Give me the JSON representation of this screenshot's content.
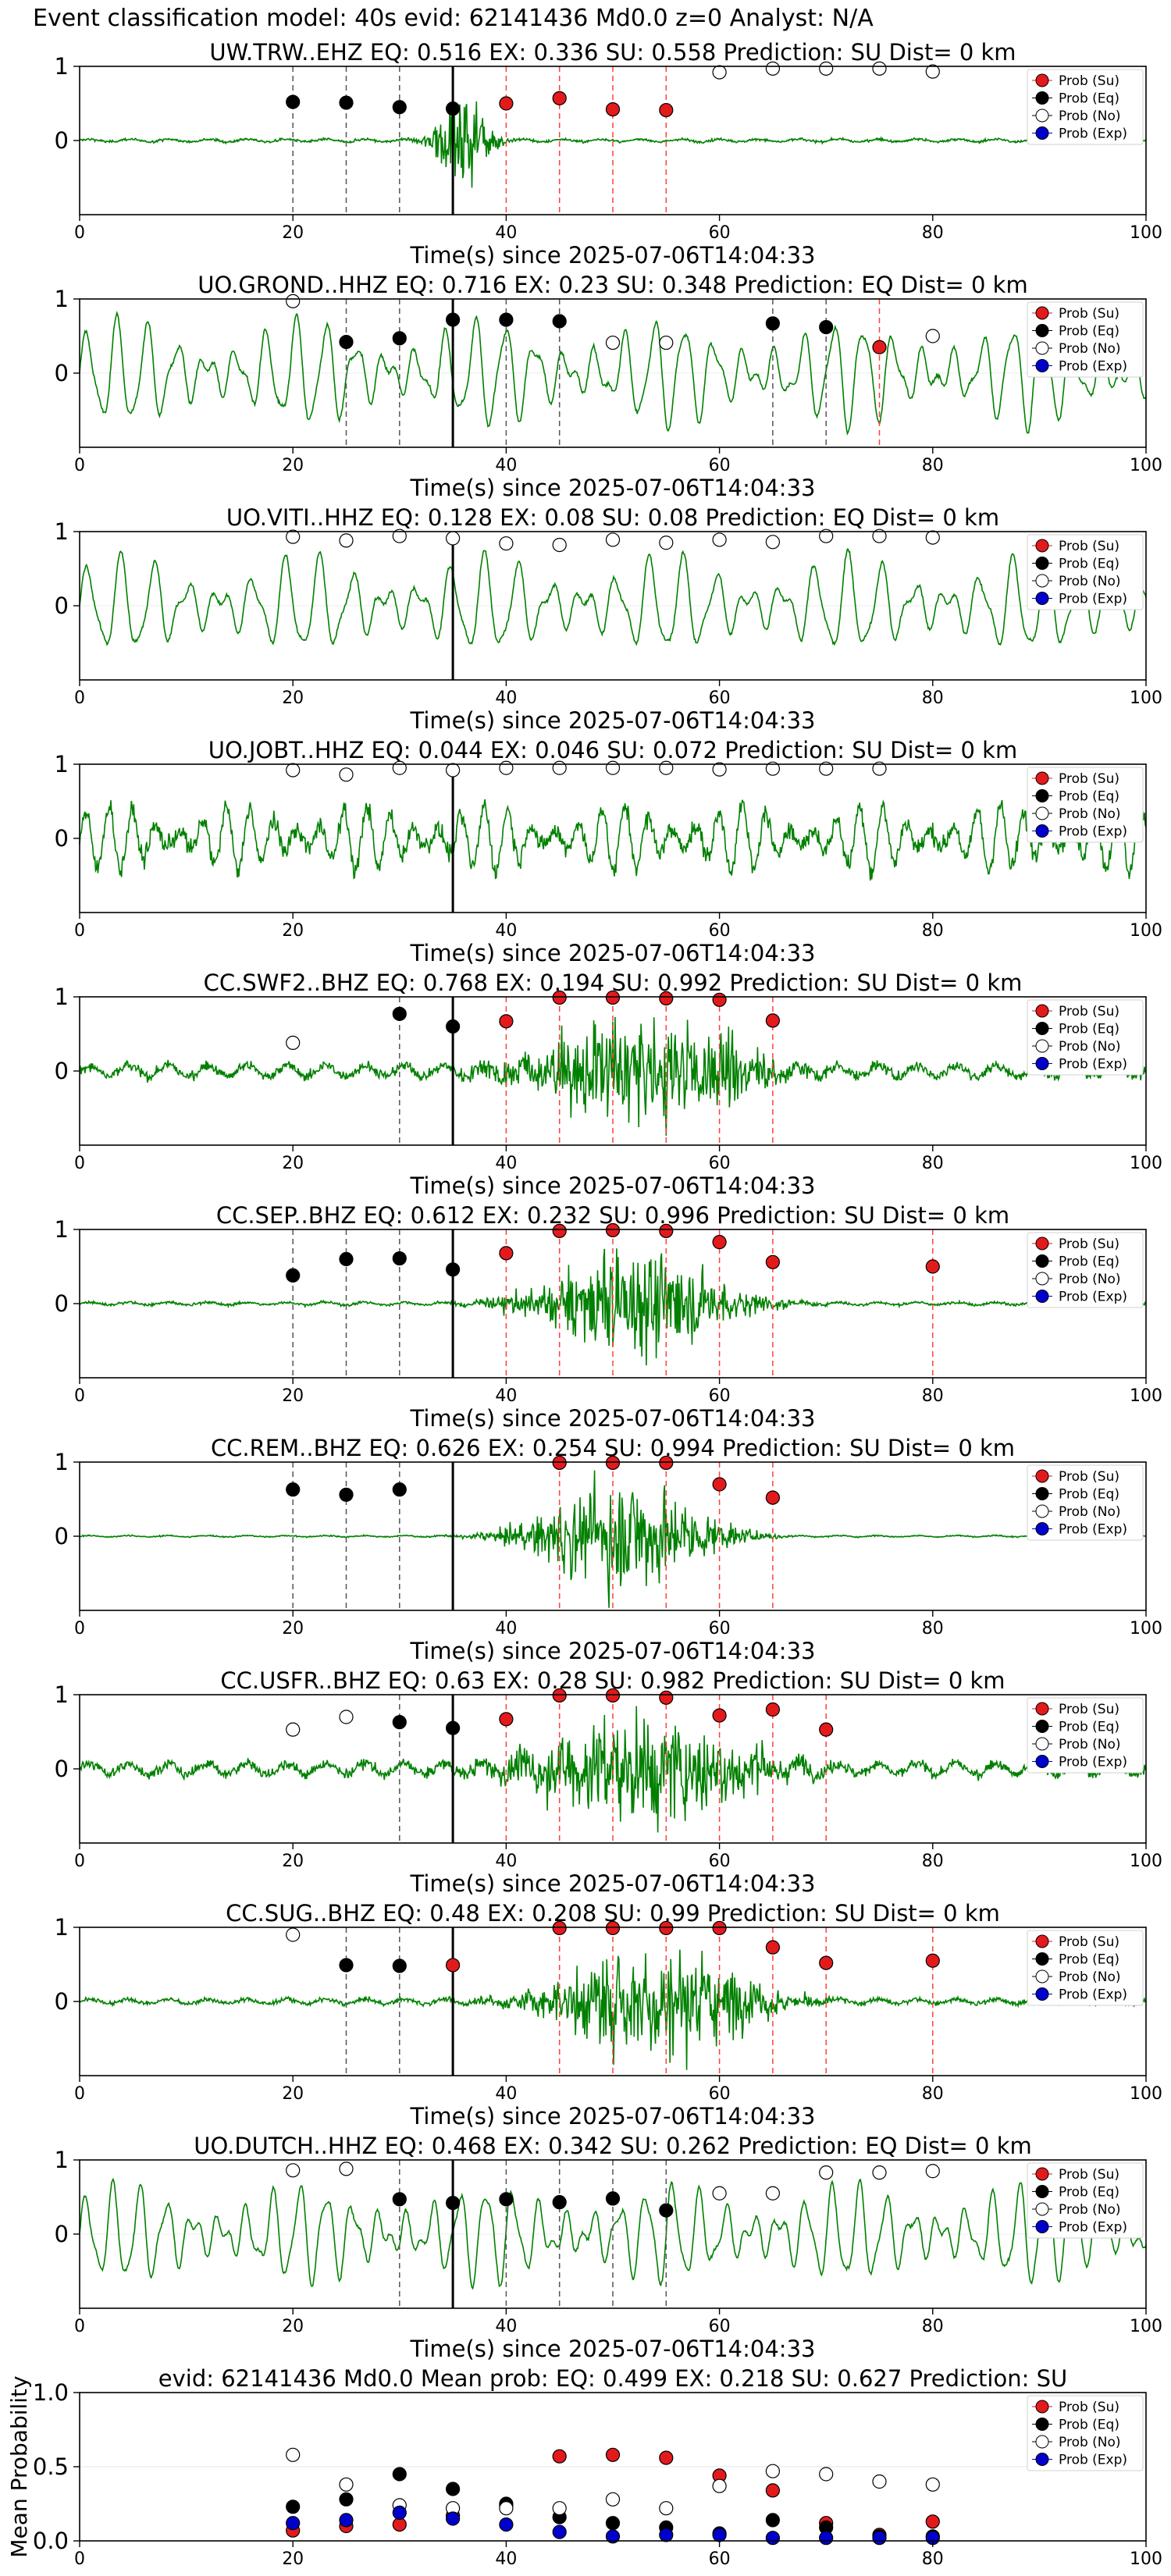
{
  "suptitle": "Event classification model: 40s evid: 62141436 Md0.0 z=0 Analyst: N/A",
  "legend_labels": [
    "Prob (Su)",
    "Prob (Eq)",
    "Prob (No)",
    "Prob (Exp)"
  ],
  "colors": {
    "su": "#e31a1c",
    "eq": "#000000",
    "no": "#ffffff",
    "exp": "#0000cc",
    "trace": "#008000",
    "su_line": "#ff4040",
    "eq_line": "#555555",
    "arrival": "#000000"
  },
  "chart_data": [
    {
      "type": "line",
      "title": "UW.TRW..EHZ   EQ: 0.516  EX: 0.336  SU: 0.558   Prediction: SU    Dist= 0 km",
      "xlabel": "Time(s) since 2025-07-06T14:04:33",
      "xlim": [
        0,
        100
      ],
      "xticks": [
        0,
        20,
        40,
        60,
        80,
        100
      ],
      "yticks": [
        0,
        1
      ],
      "ylim": [
        -1,
        1
      ],
      "trace_style": "burst",
      "burst_center": 36,
      "burst_width": 2.5,
      "noise_amp": 0.03,
      "burst_amp": 1.0,
      "arrival": 35,
      "points": [
        {
          "x": 20,
          "y": 0.52,
          "c": "eq"
        },
        {
          "x": 25,
          "y": 0.51,
          "c": "eq"
        },
        {
          "x": 30,
          "y": 0.45,
          "c": "eq"
        },
        {
          "x": 35,
          "y": 0.43,
          "c": "eq"
        },
        {
          "x": 40,
          "y": 0.5,
          "c": "su"
        },
        {
          "x": 45,
          "y": 0.57,
          "c": "su"
        },
        {
          "x": 50,
          "y": 0.42,
          "c": "su"
        },
        {
          "x": 55,
          "y": 0.41,
          "c": "su"
        },
        {
          "x": 60,
          "y": 0.92,
          "c": "no"
        },
        {
          "x": 65,
          "y": 0.97,
          "c": "no"
        },
        {
          "x": 70,
          "y": 0.97,
          "c": "no"
        },
        {
          "x": 75,
          "y": 0.97,
          "c": "no"
        },
        {
          "x": 80,
          "y": 0.93,
          "c": "no"
        }
      ]
    },
    {
      "type": "line",
      "title": "UO.GROND..HHZ   EQ: 0.716  EX: 0.23  SU: 0.348   Prediction: EQ    Dist= 0 km",
      "xlabel": "Time(s) since 2025-07-06T14:04:33",
      "xlim": [
        0,
        100
      ],
      "xticks": [
        0,
        20,
        40,
        60,
        80,
        100
      ],
      "yticks": [
        0,
        1
      ],
      "ylim": [
        -1,
        1
      ],
      "trace_style": "wave",
      "wave_amp": 0.6,
      "wave_period": 2.8,
      "arrival": 35,
      "points": [
        {
          "x": 20,
          "y": 0.97,
          "c": "no"
        },
        {
          "x": 25,
          "y": 0.42,
          "c": "eq"
        },
        {
          "x": 30,
          "y": 0.47,
          "c": "eq"
        },
        {
          "x": 35,
          "y": 0.72,
          "c": "eq"
        },
        {
          "x": 40,
          "y": 0.72,
          "c": "eq"
        },
        {
          "x": 45,
          "y": 0.7,
          "c": "eq"
        },
        {
          "x": 50,
          "y": 0.41,
          "c": "no"
        },
        {
          "x": 55,
          "y": 0.41,
          "c": "no"
        },
        {
          "x": 65,
          "y": 0.67,
          "c": "eq"
        },
        {
          "x": 70,
          "y": 0.62,
          "c": "eq"
        },
        {
          "x": 75,
          "y": 0.35,
          "c": "su"
        },
        {
          "x": 80,
          "y": 0.5,
          "c": "no"
        }
      ]
    },
    {
      "type": "line",
      "title": "UO.VITI..HHZ   EQ: 0.128  EX: 0.08  SU: 0.08   Prediction: EQ    Dist= 0 km",
      "xlabel": "Time(s) since 2025-07-06T14:04:33",
      "xlim": [
        0,
        100
      ],
      "xticks": [
        0,
        20,
        40,
        60,
        80,
        100
      ],
      "yticks": [
        0,
        1
      ],
      "ylim": [
        -1,
        1
      ],
      "trace_style": "wave",
      "wave_amp": 0.55,
      "wave_period": 3.1,
      "arrival": 35,
      "points": [
        {
          "x": 20,
          "y": 0.93,
          "c": "no"
        },
        {
          "x": 25,
          "y": 0.88,
          "c": "no"
        },
        {
          "x": 30,
          "y": 0.94,
          "c": "no"
        },
        {
          "x": 35,
          "y": 0.91,
          "c": "no"
        },
        {
          "x": 40,
          "y": 0.84,
          "c": "no"
        },
        {
          "x": 45,
          "y": 0.82,
          "c": "no"
        },
        {
          "x": 50,
          "y": 0.89,
          "c": "no"
        },
        {
          "x": 55,
          "y": 0.85,
          "c": "no"
        },
        {
          "x": 60,
          "y": 0.89,
          "c": "no"
        },
        {
          "x": 65,
          "y": 0.86,
          "c": "no"
        },
        {
          "x": 70,
          "y": 0.94,
          "c": "no"
        },
        {
          "x": 75,
          "y": 0.94,
          "c": "no"
        },
        {
          "x": 80,
          "y": 0.92,
          "c": "no"
        }
      ]
    },
    {
      "type": "line",
      "title": "UO.JOBT..HHZ   EQ: 0.044  EX: 0.046  SU: 0.072   Prediction: SU    Dist= 0 km",
      "xlabel": "Time(s) since 2025-07-06T14:04:33",
      "xlim": [
        0,
        100
      ],
      "xticks": [
        0,
        20,
        40,
        60,
        80,
        100
      ],
      "yticks": [
        0,
        1
      ],
      "ylim": [
        -1,
        1
      ],
      "trace_style": "noisy",
      "wave_amp": 0.45,
      "wave_period": 2.2,
      "arrival": 35,
      "points": [
        {
          "x": 20,
          "y": 0.92,
          "c": "no"
        },
        {
          "x": 25,
          "y": 0.86,
          "c": "no"
        },
        {
          "x": 30,
          "y": 0.95,
          "c": "no"
        },
        {
          "x": 35,
          "y": 0.92,
          "c": "no"
        },
        {
          "x": 40,
          "y": 0.95,
          "c": "no"
        },
        {
          "x": 45,
          "y": 0.95,
          "c": "no"
        },
        {
          "x": 50,
          "y": 0.95,
          "c": "no"
        },
        {
          "x": 55,
          "y": 0.95,
          "c": "no"
        },
        {
          "x": 60,
          "y": 0.93,
          "c": "no"
        },
        {
          "x": 65,
          "y": 0.94,
          "c": "no"
        },
        {
          "x": 70,
          "y": 0.94,
          "c": "no"
        },
        {
          "x": 75,
          "y": 0.94,
          "c": "no"
        }
      ]
    },
    {
      "type": "line",
      "title": "CC.SWF2..BHZ   EQ: 0.768  EX: 0.194  SU: 0.992   Prediction: SU    Dist= 0 km",
      "xlabel": "Time(s) since 2025-07-06T14:04:33",
      "xlim": [
        0,
        100
      ],
      "xticks": [
        0,
        20,
        40,
        60,
        80,
        100
      ],
      "yticks": [
        0,
        1
      ],
      "ylim": [
        -1,
        1
      ],
      "trace_style": "long_burst",
      "burst_center": 53,
      "burst_width": 11,
      "noise_amp": 0.12,
      "burst_amp": 0.95,
      "arrival": 35,
      "points": [
        {
          "x": 20,
          "y": 0.38,
          "c": "no"
        },
        {
          "x": 30,
          "y": 0.77,
          "c": "eq"
        },
        {
          "x": 35,
          "y": 0.6,
          "c": "eq"
        },
        {
          "x": 40,
          "y": 0.67,
          "c": "su"
        },
        {
          "x": 45,
          "y": 0.99,
          "c": "su"
        },
        {
          "x": 50,
          "y": 0.99,
          "c": "su"
        },
        {
          "x": 55,
          "y": 0.98,
          "c": "su"
        },
        {
          "x": 60,
          "y": 0.96,
          "c": "su"
        },
        {
          "x": 65,
          "y": 0.68,
          "c": "su"
        }
      ]
    },
    {
      "type": "line",
      "title": "CC.SEP..BHZ   EQ: 0.612  EX: 0.232  SU: 0.996   Prediction: SU    Dist= 0 km",
      "xlabel": "Time(s) since 2025-07-06T14:04:33",
      "xlim": [
        0,
        100
      ],
      "xticks": [
        0,
        20,
        40,
        60,
        80,
        100
      ],
      "yticks": [
        0,
        1
      ],
      "ylim": [
        -1,
        1
      ],
      "trace_style": "long_burst",
      "burst_center": 52,
      "burst_width": 9,
      "noise_amp": 0.03,
      "burst_amp": 0.95,
      "arrival": 35,
      "points": [
        {
          "x": 20,
          "y": 0.38,
          "c": "eq"
        },
        {
          "x": 25,
          "y": 0.6,
          "c": "eq"
        },
        {
          "x": 30,
          "y": 0.61,
          "c": "eq"
        },
        {
          "x": 35,
          "y": 0.46,
          "c": "eq"
        },
        {
          "x": 40,
          "y": 0.68,
          "c": "su"
        },
        {
          "x": 45,
          "y": 0.98,
          "c": "su"
        },
        {
          "x": 50,
          "y": 0.99,
          "c": "su"
        },
        {
          "x": 55,
          "y": 0.98,
          "c": "su"
        },
        {
          "x": 60,
          "y": 0.83,
          "c": "su"
        },
        {
          "x": 65,
          "y": 0.56,
          "c": "su"
        },
        {
          "x": 80,
          "y": 0.5,
          "c": "su"
        }
      ]
    },
    {
      "type": "line",
      "title": "CC.REM..BHZ   EQ: 0.626  EX: 0.254  SU: 0.994   Prediction: SU    Dist= 0 km",
      "xlabel": "Time(s) since 2025-07-06T14:04:33",
      "xlim": [
        0,
        100
      ],
      "xticks": [
        0,
        20,
        40,
        60,
        80,
        100
      ],
      "yticks": [
        0,
        1
      ],
      "ylim": [
        -1,
        1
      ],
      "trace_style": "long_burst",
      "burst_center": 51,
      "burst_width": 8,
      "noise_amp": 0.015,
      "burst_amp": 1.0,
      "arrival": 35,
      "points": [
        {
          "x": 20,
          "y": 0.63,
          "c": "eq"
        },
        {
          "x": 25,
          "y": 0.56,
          "c": "eq"
        },
        {
          "x": 30,
          "y": 0.63,
          "c": "eq"
        },
        {
          "x": 45,
          "y": 0.99,
          "c": "su"
        },
        {
          "x": 50,
          "y": 0.99,
          "c": "su"
        },
        {
          "x": 55,
          "y": 0.99,
          "c": "su"
        },
        {
          "x": 60,
          "y": 0.7,
          "c": "su"
        },
        {
          "x": 65,
          "y": 0.52,
          "c": "su"
        }
      ]
    },
    {
      "type": "line",
      "title": "CC.USFR..BHZ   EQ: 0.63  EX: 0.28  SU: 0.982   Prediction: SU    Dist= 0 km",
      "xlabel": "Time(s) since 2025-07-06T14:04:33",
      "xlim": [
        0,
        100
      ],
      "xticks": [
        0,
        20,
        40,
        60,
        80,
        100
      ],
      "yticks": [
        0,
        1
      ],
      "ylim": [
        -1,
        1
      ],
      "trace_style": "long_burst",
      "burst_center": 53,
      "burst_width": 11,
      "noise_amp": 0.12,
      "burst_amp": 0.95,
      "arrival": 35,
      "points": [
        {
          "x": 20,
          "y": 0.53,
          "c": "no"
        },
        {
          "x": 25,
          "y": 0.7,
          "c": "no"
        },
        {
          "x": 30,
          "y": 0.63,
          "c": "eq"
        },
        {
          "x": 35,
          "y": 0.55,
          "c": "eq"
        },
        {
          "x": 40,
          "y": 0.67,
          "c": "su"
        },
        {
          "x": 45,
          "y": 0.99,
          "c": "su"
        },
        {
          "x": 50,
          "y": 0.99,
          "c": "su"
        },
        {
          "x": 55,
          "y": 0.96,
          "c": "su"
        },
        {
          "x": 60,
          "y": 0.72,
          "c": "su"
        },
        {
          "x": 65,
          "y": 0.8,
          "c": "su"
        },
        {
          "x": 70,
          "y": 0.53,
          "c": "su"
        }
      ]
    },
    {
      "type": "line",
      "title": "CC.SUG..BHZ   EQ: 0.48  EX: 0.208  SU: 0.99   Prediction: SU    Dist= 0 km",
      "xlabel": "Time(s) since 2025-07-06T14:04:33",
      "xlim": [
        0,
        100
      ],
      "xticks": [
        0,
        20,
        40,
        60,
        80,
        100
      ],
      "yticks": [
        0,
        1
      ],
      "ylim": [
        -1,
        1
      ],
      "trace_style": "long_burst",
      "burst_center": 54,
      "burst_width": 10,
      "noise_amp": 0.05,
      "burst_amp": 1.0,
      "arrival": 35,
      "points": [
        {
          "x": 20,
          "y": 0.9,
          "c": "no"
        },
        {
          "x": 25,
          "y": 0.49,
          "c": "eq"
        },
        {
          "x": 30,
          "y": 0.48,
          "c": "eq"
        },
        {
          "x": 35,
          "y": 0.49,
          "c": "su"
        },
        {
          "x": 45,
          "y": 0.99,
          "c": "su"
        },
        {
          "x": 50,
          "y": 0.99,
          "c": "su"
        },
        {
          "x": 55,
          "y": 0.99,
          "c": "su"
        },
        {
          "x": 60,
          "y": 0.99,
          "c": "su"
        },
        {
          "x": 65,
          "y": 0.73,
          "c": "su"
        },
        {
          "x": 70,
          "y": 0.52,
          "c": "su"
        },
        {
          "x": 80,
          "y": 0.55,
          "c": "su"
        }
      ]
    },
    {
      "type": "line",
      "title": "UO.DUTCH..HHZ   EQ: 0.468  EX: 0.342  SU: 0.262   Prediction: EQ    Dist= 0 km",
      "xlabel": "Time(s) since 2025-07-06T14:04:33",
      "xlim": [
        0,
        100
      ],
      "xticks": [
        0,
        20,
        40,
        60,
        80,
        100
      ],
      "yticks": [
        0,
        1
      ],
      "ylim": [
        -1,
        1
      ],
      "trace_style": "wave",
      "wave_amp": 0.55,
      "wave_period": 2.5,
      "arrival": 35,
      "points": [
        {
          "x": 20,
          "y": 0.86,
          "c": "no"
        },
        {
          "x": 25,
          "y": 0.88,
          "c": "no"
        },
        {
          "x": 30,
          "y": 0.47,
          "c": "eq"
        },
        {
          "x": 35,
          "y": 0.42,
          "c": "eq"
        },
        {
          "x": 40,
          "y": 0.47,
          "c": "eq"
        },
        {
          "x": 45,
          "y": 0.43,
          "c": "eq"
        },
        {
          "x": 50,
          "y": 0.48,
          "c": "eq"
        },
        {
          "x": 55,
          "y": 0.32,
          "c": "eq"
        },
        {
          "x": 60,
          "y": 0.55,
          "c": "no"
        },
        {
          "x": 65,
          "y": 0.55,
          "c": "no"
        },
        {
          "x": 70,
          "y": 0.83,
          "c": "no"
        },
        {
          "x": 75,
          "y": 0.83,
          "c": "no"
        },
        {
          "x": 80,
          "y": 0.85,
          "c": "no"
        }
      ]
    },
    {
      "type": "scatter",
      "title": "evid: 62141436  Md0.0   Mean prob:   EQ: 0.499  EX: 0.218  SU: 0.627   Prediction: SU",
      "ylabel": "Mean Probability",
      "xlim": [
        0,
        100
      ],
      "ylim": [
        0,
        1
      ],
      "xticks": [
        0,
        20,
        40,
        60,
        80,
        100
      ],
      "yticks": [
        0.0,
        0.5,
        1.0
      ],
      "series": [
        {
          "name": "Prob (Su)",
          "c": "su",
          "x": [
            20,
            25,
            30,
            35,
            40,
            45,
            50,
            55,
            60,
            65,
            70,
            75,
            80
          ],
          "y": [
            0.07,
            0.1,
            0.11,
            0.17,
            0.24,
            0.57,
            0.58,
            0.56,
            0.44,
            0.34,
            0.12,
            0.04,
            0.13
          ]
        },
        {
          "name": "Prob (Eq)",
          "c": "eq",
          "x": [
            20,
            25,
            30,
            35,
            40,
            45,
            50,
            55,
            60,
            65,
            70,
            75,
            80
          ],
          "y": [
            0.23,
            0.28,
            0.45,
            0.35,
            0.25,
            0.16,
            0.12,
            0.09,
            0.05,
            0.14,
            0.09,
            0.03,
            0.03
          ]
        },
        {
          "name": "Prob (No)",
          "c": "no",
          "x": [
            20,
            25,
            30,
            35,
            40,
            45,
            50,
            55,
            60,
            65,
            70,
            75,
            80
          ],
          "y": [
            0.58,
            0.38,
            0.24,
            0.22,
            0.22,
            0.22,
            0.28,
            0.22,
            0.37,
            0.47,
            0.45,
            0.4,
            0.38
          ]
        },
        {
          "name": "Prob (Exp)",
          "c": "exp",
          "x": [
            20,
            25,
            30,
            35,
            40,
            45,
            50,
            55,
            60,
            65,
            70,
            75,
            80
          ],
          "y": [
            0.12,
            0.14,
            0.19,
            0.15,
            0.11,
            0.06,
            0.03,
            0.04,
            0.04,
            0.02,
            0.02,
            0.02,
            0.02
          ]
        }
      ]
    }
  ]
}
